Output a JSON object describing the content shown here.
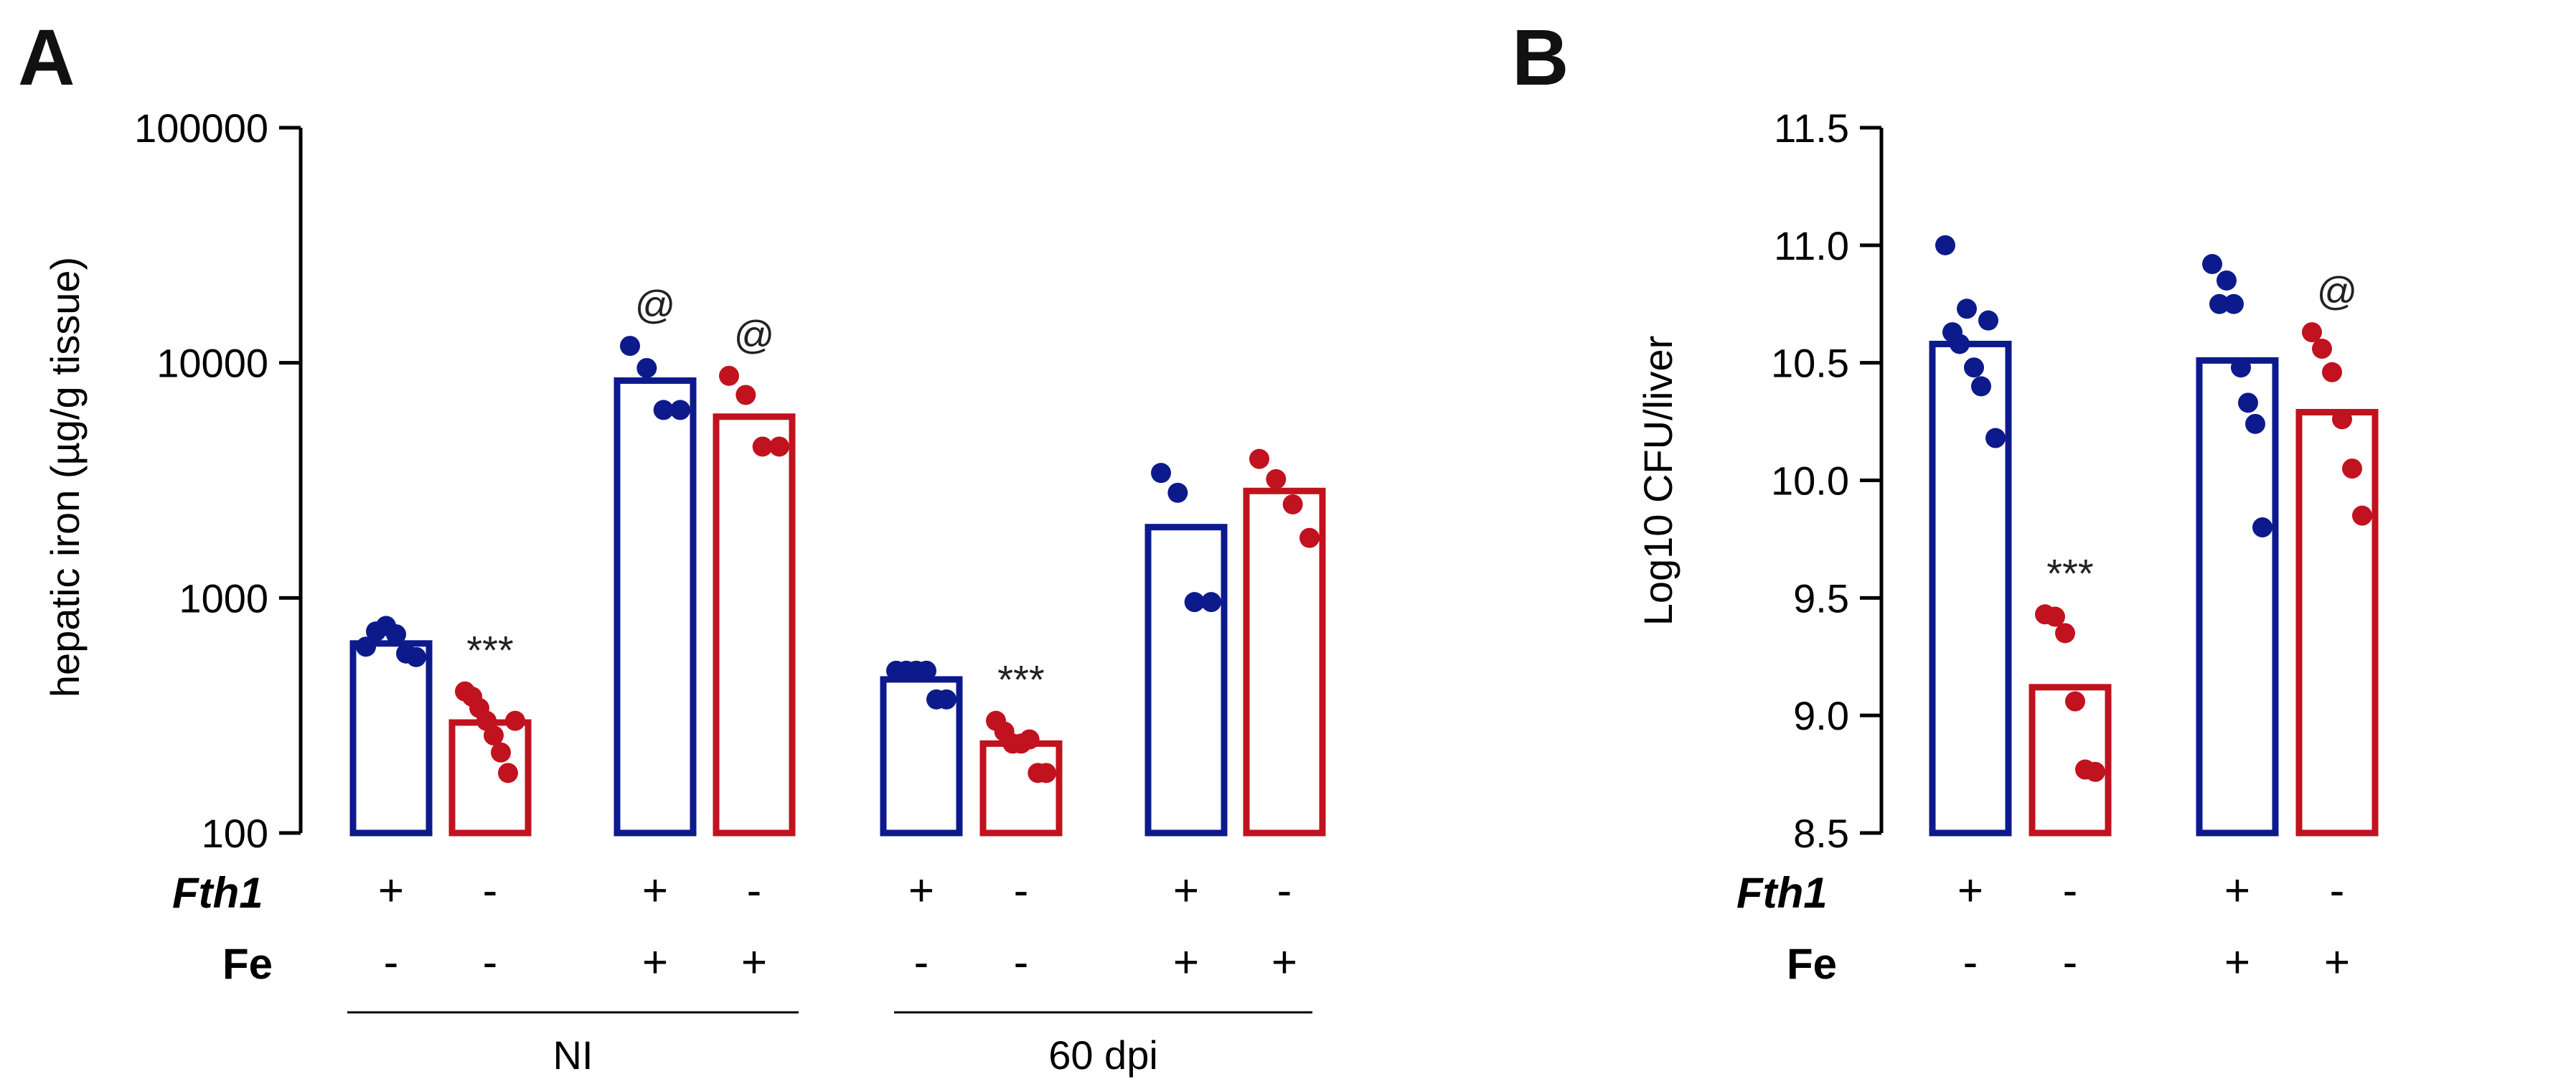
{
  "colors": {
    "blue": "#0d1a8c",
    "red": "#c1121f"
  },
  "row_headers": {
    "fth1": "Fth1",
    "fe": "Fe"
  },
  "panels": [
    {
      "label": "A"
    },
    {
      "label": "B"
    }
  ],
  "chart_data": [
    {
      "panel": "A",
      "type": "bar",
      "scale": "log",
      "ylabel": "hepatic iron (µg/g tissue)",
      "ylim": [
        100,
        100000
      ],
      "yticks": [
        "100",
        "1000",
        "10000",
        "100000"
      ],
      "yticks_values": [
        100,
        1000,
        10000,
        100000
      ],
      "groups": [
        {
          "label": "NI",
          "bars": [
            0,
            1,
            2,
            3
          ]
        },
        {
          "label": "60 dpi",
          "bars": [
            4,
            5,
            6,
            7
          ]
        }
      ],
      "bars": [
        {
          "fth1": "+",
          "fe": "-",
          "color": "blue",
          "value": 640,
          "points": [
            620,
            720,
            760,
            700,
            580,
            560
          ],
          "annotation": ""
        },
        {
          "fth1": "-",
          "fe": "-",
          "color": "red",
          "value": 295,
          "points": [
            400,
            380,
            340,
            300,
            260,
            220,
            180,
            300
          ],
          "annotation": "***"
        },
        {
          "fth1": "+",
          "fe": "+",
          "color": "blue",
          "value": 8400,
          "points": [
            11800,
            9500,
            6300,
            6300
          ],
          "annotation": "@"
        },
        {
          "fth1": "-",
          "fe": "+",
          "color": "red",
          "value": 5900,
          "points": [
            8800,
            7300,
            4400,
            4400
          ],
          "annotation": "@"
        },
        {
          "fth1": "+",
          "fe": "-",
          "color": "blue",
          "value": 450,
          "points": [
            490,
            490,
            490,
            490,
            370,
            370
          ],
          "annotation": ""
        },
        {
          "fth1": "-",
          "fe": "-",
          "color": "red",
          "value": 240,
          "points": [
            300,
            270,
            240,
            240,
            250,
            180,
            180
          ],
          "annotation": "***"
        },
        {
          "fth1": "+",
          "fe": "+",
          "color": "blue",
          "value": 2000,
          "points": [
            3400,
            2800,
            960,
            960
          ],
          "annotation": ""
        },
        {
          "fth1": "-",
          "fe": "+",
          "color": "red",
          "value": 2850,
          "points": [
            3900,
            3200,
            2500,
            1800
          ],
          "annotation": ""
        }
      ]
    },
    {
      "panel": "B",
      "type": "bar",
      "scale": "linear",
      "ylabel": "Log10 CFU/liver",
      "ylim": [
        8.5,
        11.5
      ],
      "yticks": [
        "8.5",
        "9.0",
        "9.5",
        "10.0",
        "10.5",
        "11.0",
        "11.5"
      ],
      "yticks_values": [
        8.5,
        9.0,
        9.5,
        10.0,
        10.5,
        11.0,
        11.5
      ],
      "bars": [
        {
          "fth1": "+",
          "fe": "-",
          "color": "blue",
          "value": 10.58,
          "points": [
            11.0,
            10.63,
            10.58,
            10.73,
            10.48,
            10.4,
            10.68,
            10.18
          ],
          "annotation": ""
        },
        {
          "fth1": "-",
          "fe": "-",
          "color": "red",
          "value": 9.12,
          "points": [
            9.43,
            9.42,
            9.35,
            9.06,
            8.77,
            8.76
          ],
          "annotation": "***"
        },
        {
          "fth1": "+",
          "fe": "+",
          "color": "blue",
          "value": 10.51,
          "points": [
            10.92,
            10.75,
            10.85,
            10.75,
            10.48,
            10.33,
            10.24,
            9.8
          ],
          "annotation": ""
        },
        {
          "fth1": "-",
          "fe": "+",
          "color": "red",
          "value": 10.29,
          "points": [
            10.63,
            10.56,
            10.46,
            10.26,
            10.05,
            9.85
          ],
          "annotation": "@"
        }
      ]
    }
  ]
}
